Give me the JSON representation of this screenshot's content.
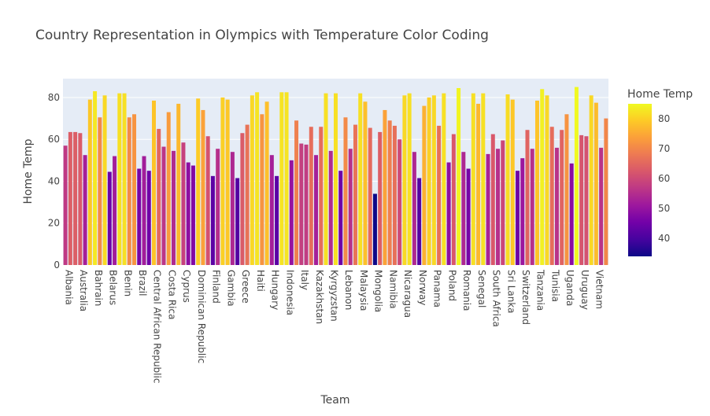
{
  "chart_data": {
    "type": "bar",
    "title": "Country Representation in Olympics with Temperature Color Coding",
    "xlabel": "Team",
    "ylabel": "Home Temp",
    "ylim": [
      0,
      89
    ],
    "y_ticks": [
      0,
      20,
      40,
      60,
      80
    ],
    "x_tick_labels": [
      "Albania",
      "Australia",
      "Bahrain",
      "Belarus",
      "Benin",
      "Brazil",
      "Central African Republic",
      "Costa Rica",
      "Cyprus",
      "Dominican Republic",
      "Finland",
      "Gambia",
      "Greece",
      "Haiti",
      "Hungary",
      "Indonesia",
      "Italy",
      "Kazakhstan",
      "Kyrgyzstan",
      "Lebanon",
      "Malaysia",
      "Mongolia",
      "Namibia",
      "Nicaragua",
      "Norway",
      "Panama",
      "Poland",
      "Romania",
      "Senegal",
      "South Africa",
      "Sri Lanka",
      "Switzerland",
      "Tanzania",
      "Tunisia",
      "Uganda",
      "Uruguay",
      "Vietnam"
    ],
    "values": [
      57,
      63.5,
      63.5,
      63,
      52.5,
      79,
      83,
      70.5,
      81,
      44.5,
      52,
      82,
      82,
      70.5,
      72,
      46,
      52,
      45,
      78.5,
      65,
      56.5,
      73,
      54.5,
      77,
      58.5,
      49,
      47.5,
      79.5,
      74,
      61.5,
      42.5,
      55.5,
      80,
      79,
      54,
      41.5,
      63,
      67,
      81,
      82.5,
      72,
      78,
      52.5,
      42.5,
      82.5,
      82.5,
      50,
      69,
      58,
      57.5,
      66,
      52.5,
      66,
      82,
      54.5,
      82,
      45,
      70.5,
      55.5,
      67,
      82,
      78,
      65.5,
      34,
      63.5,
      74,
      69,
      66.5,
      60,
      81,
      82,
      54,
      41.5,
      76,
      80,
      81,
      66.5,
      82,
      49,
      62.5,
      84.5,
      54,
      46,
      82,
      77,
      82,
      53,
      62.5,
      55.5,
      59.5,
      81.5,
      79,
      45,
      51,
      64.5,
      55.5,
      78.5,
      84,
      81,
      66,
      56,
      64.5,
      72,
      48.5,
      85,
      62,
      61.5,
      81,
      77.5,
      56,
      70
    ],
    "colorbar": {
      "title": "Home Temp",
      "min": 34,
      "max": 85,
      "ticks": [
        40,
        50,
        60,
        70,
        80
      ],
      "colorscale": [
        "#0d0887",
        "#46039f",
        "#7201a8",
        "#9c179e",
        "#bd3786",
        "#d8576b",
        "#ed7953",
        "#fb9f3a",
        "#fdca26",
        "#f0f921"
      ]
    },
    "grid": true,
    "background": "#e5ecf6"
  }
}
